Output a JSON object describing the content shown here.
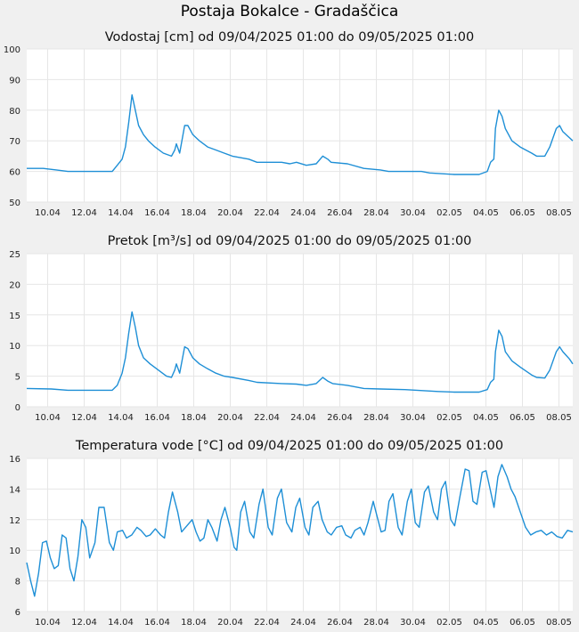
{
  "main_title": "Postaja Bokalce - Gradaščica",
  "colors": {
    "line": "#1e8fd6",
    "plot_bg": "#ffffff",
    "grid": "#e6e6e6",
    "page_bg": "#f0f0f0"
  },
  "chart_data": [
    {
      "type": "line",
      "title": "Vodostaj [cm] od 09/04/2025 01:00 do 09/05/2025 01:00",
      "xlabel": "",
      "ylabel": "",
      "x_range": [
        "2025-04-09 01:00",
        "2025-05-09 01:00"
      ],
      "xticks": [
        "10.04",
        "12.04",
        "14.04",
        "16.04",
        "18.04",
        "20.04",
        "22.04",
        "24.04",
        "26.04",
        "28.04",
        "30.04",
        "02.05",
        "04.05",
        "06.05",
        "08.05"
      ],
      "ylim": [
        50,
        100
      ],
      "yticks": [
        50,
        60,
        70,
        80,
        90,
        100
      ],
      "grid": true,
      "series": [
        {
          "values": [
            [
              0,
              61
            ],
            [
              1.0,
              61
            ],
            [
              1.8,
              60.5
            ],
            [
              2.5,
              60
            ],
            [
              4.5,
              60
            ],
            [
              5.2,
              60
            ],
            [
              5.5,
              62
            ],
            [
              5.8,
              64
            ],
            [
              6.0,
              68
            ],
            [
              6.2,
              76
            ],
            [
              6.4,
              85
            ],
            [
              6.6,
              80
            ],
            [
              6.8,
              75
            ],
            [
              7.1,
              72
            ],
            [
              7.4,
              70
            ],
            [
              7.8,
              68
            ],
            [
              8.3,
              66
            ],
            [
              8.8,
              65
            ],
            [
              9.0,
              67
            ],
            [
              9.1,
              69
            ],
            [
              9.3,
              66
            ],
            [
              9.6,
              75
            ],
            [
              9.8,
              75
            ],
            [
              10.1,
              72
            ],
            [
              10.5,
              70
            ],
            [
              11.0,
              68
            ],
            [
              11.5,
              67
            ],
            [
              12.0,
              66
            ],
            [
              12.5,
              65
            ],
            [
              13.5,
              64
            ],
            [
              14.0,
              63
            ],
            [
              15.5,
              63
            ],
            [
              16.0,
              62.5
            ],
            [
              16.4,
              63
            ],
            [
              17.0,
              62
            ],
            [
              17.6,
              62.5
            ],
            [
              18.0,
              65
            ],
            [
              18.3,
              64
            ],
            [
              18.5,
              63
            ],
            [
              19.5,
              62.5
            ],
            [
              20.5,
              61
            ],
            [
              21.5,
              60.5
            ],
            [
              22.0,
              60
            ],
            [
              24.0,
              60
            ],
            [
              24.5,
              59.5
            ],
            [
              26.0,
              59
            ],
            [
              27.5,
              59
            ],
            [
              28.0,
              60
            ],
            [
              28.2,
              63
            ],
            [
              28.4,
              64
            ],
            [
              28.5,
              74
            ],
            [
              28.7,
              80
            ],
            [
              28.9,
              78
            ],
            [
              29.1,
              74
            ],
            [
              29.5,
              70
            ],
            [
              30.0,
              68
            ],
            [
              30.7,
              66
            ],
            [
              31.0,
              65
            ],
            [
              31.5,
              65
            ],
            [
              31.8,
              68
            ],
            [
              32.2,
              74
            ],
            [
              32.4,
              75
            ],
            [
              32.6,
              73
            ],
            [
              33.0,
              71
            ],
            [
              33.2,
              70
            ]
          ]
        }
      ]
    },
    {
      "type": "line",
      "title": "Pretok [m³/s] od 09/04/2025 01:00 do 09/05/2025 01:00",
      "xlabel": "",
      "ylabel": "",
      "x_range": [
        "2025-04-09 01:00",
        "2025-05-09 01:00"
      ],
      "xticks": [
        "10.04",
        "12.04",
        "14.04",
        "16.04",
        "18.04",
        "20.04",
        "22.04",
        "24.04",
        "26.04",
        "28.04",
        "30.04",
        "02.05",
        "04.05",
        "06.05",
        "08.05"
      ],
      "ylim": [
        0,
        25
      ],
      "yticks": [
        0,
        5,
        10,
        15,
        20,
        25
      ],
      "grid": true,
      "series": [
        {
          "values": [
            [
              0,
              3.0
            ],
            [
              1.5,
              2.9
            ],
            [
              2.5,
              2.7
            ],
            [
              4.5,
              2.7
            ],
            [
              5.2,
              2.7
            ],
            [
              5.5,
              3.5
            ],
            [
              5.8,
              5.5
            ],
            [
              6.0,
              8
            ],
            [
              6.2,
              12
            ],
            [
              6.4,
              15.5
            ],
            [
              6.6,
              13
            ],
            [
              6.8,
              10
            ],
            [
              7.1,
              8
            ],
            [
              7.5,
              7
            ],
            [
              8.0,
              6
            ],
            [
              8.5,
              5
            ],
            [
              8.8,
              4.8
            ],
            [
              9.0,
              6
            ],
            [
              9.1,
              7
            ],
            [
              9.3,
              5.5
            ],
            [
              9.6,
              9.8
            ],
            [
              9.8,
              9.5
            ],
            [
              10.1,
              8
            ],
            [
              10.5,
              7
            ],
            [
              11.0,
              6.2
            ],
            [
              11.5,
              5.5
            ],
            [
              12.0,
              5.0
            ],
            [
              12.5,
              4.8
            ],
            [
              13.5,
              4.3
            ],
            [
              14.0,
              4.0
            ],
            [
              15.5,
              3.8
            ],
            [
              16.4,
              3.7
            ],
            [
              17.0,
              3.5
            ],
            [
              17.6,
              3.8
            ],
            [
              18.0,
              4.8
            ],
            [
              18.3,
              4.2
            ],
            [
              18.6,
              3.8
            ],
            [
              19.5,
              3.5
            ],
            [
              20.5,
              3.0
            ],
            [
              21.5,
              2.9
            ],
            [
              23.0,
              2.8
            ],
            [
              25.0,
              2.5
            ],
            [
              26.0,
              2.4
            ],
            [
              27.5,
              2.4
            ],
            [
              28.0,
              2.8
            ],
            [
              28.2,
              4
            ],
            [
              28.4,
              4.5
            ],
            [
              28.5,
              9
            ],
            [
              28.7,
              12.5
            ],
            [
              28.9,
              11.5
            ],
            [
              29.1,
              9
            ],
            [
              29.5,
              7.5
            ],
            [
              30.0,
              6.5
            ],
            [
              30.7,
              5.2
            ],
            [
              31.0,
              4.8
            ],
            [
              31.5,
              4.7
            ],
            [
              31.8,
              6
            ],
            [
              32.2,
              9
            ],
            [
              32.4,
              9.8
            ],
            [
              32.6,
              9
            ],
            [
              33.0,
              7.8
            ],
            [
              33.2,
              7.0
            ]
          ]
        }
      ]
    },
    {
      "type": "line",
      "title": "Temperatura vode [°C] od 09/04/2025 01:00 do 09/05/2025 01:00",
      "xlabel": "",
      "ylabel": "",
      "x_range": [
        "2025-04-09 01:00",
        "2025-05-09 01:00"
      ],
      "xticks": [
        "10.04",
        "12.04",
        "14.04",
        "16.04",
        "18.04",
        "20.04",
        "22.04",
        "24.04",
        "26.04",
        "28.04",
        "30.04",
        "02.05",
        "04.05",
        "06.05",
        "08.05"
      ],
      "ylim": [
        6,
        16
      ],
      "yticks": [
        6,
        8,
        10,
        12,
        14,
        16
      ],
      "grid": true,
      "series": [
        {
          "values": [
            [
              0,
              9.2
            ],
            [
              0.3,
              8.0
            ],
            [
              0.6,
              7.0
            ],
            [
              0.9,
              8.5
            ],
            [
              1.2,
              10.5
            ],
            [
              1.5,
              10.6
            ],
            [
              1.8,
              9.5
            ],
            [
              2.1,
              8.8
            ],
            [
              2.4,
              9.0
            ],
            [
              2.7,
              11.0
            ],
            [
              3.0,
              10.8
            ],
            [
              3.3,
              8.8
            ],
            [
              3.6,
              8.0
            ],
            [
              3.9,
              9.6
            ],
            [
              4.2,
              12.0
            ],
            [
              4.5,
              11.5
            ],
            [
              4.8,
              9.5
            ],
            [
              5.2,
              10.5
            ],
            [
              5.5,
              12.8
            ],
            [
              5.9,
              12.8
            ],
            [
              6.3,
              10.5
            ],
            [
              6.6,
              10.0
            ],
            [
              6.9,
              11.2
            ],
            [
              7.3,
              11.3
            ],
            [
              7.6,
              10.8
            ],
            [
              8.0,
              11.0
            ],
            [
              8.4,
              11.5
            ],
            [
              8.7,
              11.3
            ],
            [
              9.1,
              10.9
            ],
            [
              9.4,
              11.0
            ],
            [
              9.8,
              11.4
            ],
            [
              10.2,
              11.0
            ],
            [
              10.5,
              10.8
            ],
            [
              10.8,
              12.5
            ],
            [
              11.1,
              13.8
            ],
            [
              11.5,
              12.5
            ],
            [
              11.8,
              11.2
            ],
            [
              12.2,
              11.6
            ],
            [
              12.6,
              12.0
            ],
            [
              12.9,
              11.2
            ],
            [
              13.2,
              10.6
            ],
            [
              13.5,
              10.8
            ],
            [
              13.8,
              12.0
            ],
            [
              14.1,
              11.5
            ],
            [
              14.5,
              10.6
            ],
            [
              14.8,
              12.0
            ],
            [
              15.1,
              12.8
            ],
            [
              15.5,
              11.5
            ],
            [
              15.8,
              10.2
            ],
            [
              16.0,
              10.0
            ],
            [
              16.3,
              12.5
            ],
            [
              16.6,
              13.2
            ],
            [
              17.0,
              11.2
            ],
            [
              17.3,
              10.8
            ],
            [
              17.7,
              13.0
            ],
            [
              18.0,
              14.0
            ],
            [
              18.4,
              11.5
            ],
            [
              18.7,
              11.0
            ],
            [
              19.1,
              13.4
            ],
            [
              19.4,
              14.0
            ],
            [
              19.8,
              11.8
            ],
            [
              20.2,
              11.2
            ],
            [
              20.5,
              12.8
            ],
            [
              20.8,
              13.4
            ],
            [
              21.2,
              11.5
            ],
            [
              21.5,
              11.0
            ],
            [
              21.8,
              12.8
            ],
            [
              22.2,
              13.2
            ],
            [
              22.5,
              12.0
            ],
            [
              22.9,
              11.2
            ],
            [
              23.2,
              11.0
            ],
            [
              23.6,
              11.5
            ],
            [
              24.0,
              11.6
            ],
            [
              24.3,
              11.0
            ],
            [
              24.7,
              10.8
            ],
            [
              25.0,
              11.3
            ],
            [
              25.4,
              11.5
            ],
            [
              25.7,
              11.0
            ],
            [
              26.0,
              11.8
            ],
            [
              26.4,
              13.2
            ],
            [
              26.7,
              12.2
            ],
            [
              27.0,
              11.2
            ],
            [
              27.3,
              11.3
            ],
            [
              27.6,
              13.2
            ],
            [
              27.9,
              13.7
            ],
            [
              28.3,
              11.5
            ],
            [
              28.6,
              11.0
            ],
            [
              29.0,
              13.2
            ],
            [
              29.3,
              14.0
            ],
            [
              29.6,
              11.8
            ],
            [
              29.9,
              11.5
            ],
            [
              30.3,
              13.8
            ],
            [
              30.6,
              14.2
            ],
            [
              31.0,
              12.5
            ],
            [
              31.3,
              12.0
            ],
            [
              31.6,
              14.0
            ],
            [
              31.9,
              14.5
            ],
            [
              32.3,
              12.0
            ],
            [
              32.6,
              11.6
            ],
            [
              33.0,
              13.5
            ],
            [
              33.4,
              15.3
            ],
            [
              33.7,
              15.2
            ],
            [
              34.0,
              13.2
            ],
            [
              34.3,
              13.0
            ],
            [
              34.7,
              15.1
            ],
            [
              35.0,
              15.2
            ],
            [
              35.3,
              14.0
            ],
            [
              35.6,
              12.8
            ],
            [
              35.9,
              14.8
            ],
            [
              36.2,
              15.6
            ],
            [
              36.6,
              14.8
            ],
            [
              36.9,
              14.0
            ],
            [
              37.2,
              13.5
            ],
            [
              37.6,
              12.5
            ],
            [
              38.0,
              11.5
            ],
            [
              38.4,
              11.0
            ],
            [
              38.8,
              11.2
            ],
            [
              39.2,
              11.3
            ],
            [
              39.6,
              11.0
            ],
            [
              40.0,
              11.2
            ],
            [
              40.4,
              10.9
            ],
            [
              40.8,
              10.8
            ],
            [
              41.2,
              11.3
            ],
            [
              41.6,
              11.2
            ]
          ]
        }
      ]
    }
  ]
}
